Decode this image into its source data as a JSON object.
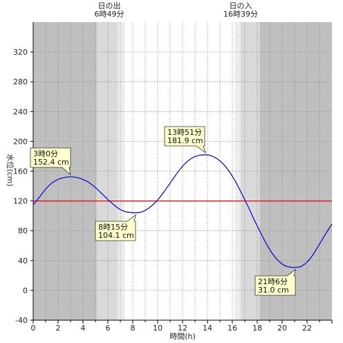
{
  "chart_data": {
    "type": "line",
    "xlabel": "時間(h)",
    "ylabel": "水位(cm)",
    "xlim": [
      0,
      24
    ],
    "ylim": [
      -40,
      360
    ],
    "x_ticks": [
      0,
      2,
      4,
      6,
      8,
      10,
      12,
      14,
      16,
      18,
      20,
      22
    ],
    "y_ticks": [
      -40,
      0,
      40,
      80,
      120,
      160,
      200,
      240,
      280,
      320
    ],
    "reference_line": 120,
    "sunrise": {
      "label": "日の出",
      "time_label": "6時49分",
      "hour": 6.817
    },
    "sunset": {
      "label": "日の入",
      "time_label": "16時39分",
      "hour": 16.65
    },
    "night_before_sunrise_until": 5.1,
    "night_after_sunset_from": 18.2,
    "series": [
      {
        "color": "#0000cc",
        "points": [
          [
            0,
            115
          ],
          [
            0.5,
            125
          ],
          [
            1,
            136
          ],
          [
            1.5,
            144
          ],
          [
            2,
            149
          ],
          [
            2.5,
            151.5
          ],
          [
            3,
            152.4
          ],
          [
            3.5,
            151.5
          ],
          [
            4,
            149
          ],
          [
            4.5,
            144.5
          ],
          [
            5,
            138
          ],
          [
            5.5,
            130
          ],
          [
            6,
            122
          ],
          [
            6.5,
            114.5
          ],
          [
            7,
            108.5
          ],
          [
            7.5,
            105.2
          ],
          [
            8.25,
            104.1
          ],
          [
            8.75,
            105.5
          ],
          [
            9.25,
            110
          ],
          [
            9.75,
            117
          ],
          [
            10.25,
            126.5
          ],
          [
            10.75,
            138
          ],
          [
            11.25,
            150
          ],
          [
            11.75,
            161.5
          ],
          [
            12.25,
            171
          ],
          [
            12.75,
            177.5
          ],
          [
            13.25,
            181
          ],
          [
            13.85,
            181.9
          ],
          [
            14.25,
            181
          ],
          [
            14.75,
            177
          ],
          [
            15.25,
            170
          ],
          [
            15.75,
            159.5
          ],
          [
            16.25,
            146
          ],
          [
            16.75,
            130
          ],
          [
            17.25,
            113
          ],
          [
            17.75,
            95
          ],
          [
            18.25,
            78
          ],
          [
            18.75,
            62
          ],
          [
            19.25,
            48.5
          ],
          [
            19.75,
            39
          ],
          [
            20.25,
            33
          ],
          [
            20.75,
            31
          ],
          [
            21.1,
            31.0
          ],
          [
            21.5,
            32
          ],
          [
            22,
            38
          ],
          [
            22.5,
            48.5
          ],
          [
            23,
            62
          ],
          [
            23.5,
            76
          ],
          [
            24,
            89
          ]
        ]
      }
    ],
    "annotations": [
      {
        "time": "3時0分",
        "value": "152.4 cm",
        "x": 3.0,
        "y": 152.4
      },
      {
        "time": "8時15分",
        "value": "104.1 cm",
        "x": 8.25,
        "y": 104.1
      },
      {
        "time": "13時51分",
        "value": "181.9 cm",
        "x": 13.85,
        "y": 181.9
      },
      {
        "time": "21時6分",
        "value": "31.0 cm",
        "x": 21.1,
        "y": 31.0
      }
    ]
  }
}
